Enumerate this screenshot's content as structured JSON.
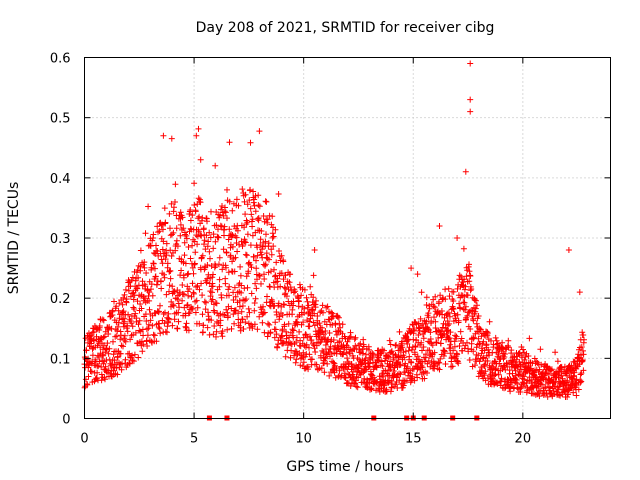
{
  "chart_data": {
    "type": "scatter",
    "title": "Day 208 of 2021, SRMTID for receiver cibg",
    "xlabel": "GPS time / hours",
    "ylabel": "SRMTID / TECUs",
    "xlim": [
      0,
      24
    ],
    "ylim": [
      0,
      0.6
    ],
    "xticks": [
      0,
      5,
      10,
      15,
      20
    ],
    "xtick_labels": [
      "0",
      "5",
      "10",
      "15",
      "20"
    ],
    "yticks": [
      0,
      0.1,
      0.2,
      0.3,
      0.4,
      0.5,
      0.6
    ],
    "ytick_labels": [
      "0",
      "0.1",
      "0.2",
      "0.3",
      "0.4",
      "0.5",
      "0.6"
    ],
    "grid": true,
    "marker": "plus",
    "series": [
      {
        "name": "SRMTID",
        "color": "#ff0000",
        "profile": [
          [
            0.0,
            0.09
          ],
          [
            0.5,
            0.11
          ],
          [
            1.0,
            0.12
          ],
          [
            1.5,
            0.13
          ],
          [
            2.0,
            0.16
          ],
          [
            2.5,
            0.18
          ],
          [
            3.0,
            0.21
          ],
          [
            3.5,
            0.24
          ],
          [
            4.0,
            0.25
          ],
          [
            4.5,
            0.26
          ],
          [
            5.0,
            0.27
          ],
          [
            5.5,
            0.25
          ],
          [
            6.0,
            0.24
          ],
          [
            6.5,
            0.25
          ],
          [
            7.0,
            0.26
          ],
          [
            7.5,
            0.27
          ],
          [
            8.0,
            0.26
          ],
          [
            8.5,
            0.24
          ],
          [
            9.0,
            0.19
          ],
          [
            9.5,
            0.16
          ],
          [
            10.0,
            0.15
          ],
          [
            10.5,
            0.14
          ],
          [
            11.0,
            0.13
          ],
          [
            11.5,
            0.12
          ],
          [
            12.0,
            0.1
          ],
          [
            12.5,
            0.09
          ],
          [
            13.0,
            0.08
          ],
          [
            13.5,
            0.08
          ],
          [
            14.0,
            0.08
          ],
          [
            14.5,
            0.09
          ],
          [
            15.0,
            0.11
          ],
          [
            15.5,
            0.12
          ],
          [
            16.0,
            0.14
          ],
          [
            16.5,
            0.15
          ],
          [
            17.0,
            0.16
          ],
          [
            17.5,
            0.18
          ],
          [
            18.0,
            0.12
          ],
          [
            18.5,
            0.1
          ],
          [
            19.0,
            0.09
          ],
          [
            19.5,
            0.08
          ],
          [
            20.0,
            0.08
          ],
          [
            20.5,
            0.07
          ],
          [
            21.0,
            0.06
          ],
          [
            21.5,
            0.06
          ],
          [
            22.0,
            0.06
          ],
          [
            22.5,
            0.07
          ],
          [
            22.8,
            0.12
          ]
        ],
        "peaks": [
          [
            3.6,
            0.47
          ],
          [
            5.1,
            0.47
          ],
          [
            5.3,
            0.43
          ],
          [
            6.5,
            0.38
          ],
          [
            7.3,
            0.36
          ],
          [
            8.3,
            0.36
          ],
          [
            10.5,
            0.28
          ],
          [
            14.9,
            0.25
          ],
          [
            15.2,
            0.24
          ],
          [
            16.2,
            0.32
          ],
          [
            17.0,
            0.3
          ],
          [
            17.4,
            0.41
          ],
          [
            17.6,
            0.59
          ],
          [
            17.6,
            0.53
          ],
          [
            17.6,
            0.51
          ],
          [
            22.1,
            0.28
          ],
          [
            22.6,
            0.21
          ]
        ],
        "points_per_hour": 110
      }
    ],
    "gap_markers_x": [
      5.7,
      6.5,
      13.2,
      14.7,
      15.0,
      15.5,
      16.8,
      17.9
    ]
  }
}
